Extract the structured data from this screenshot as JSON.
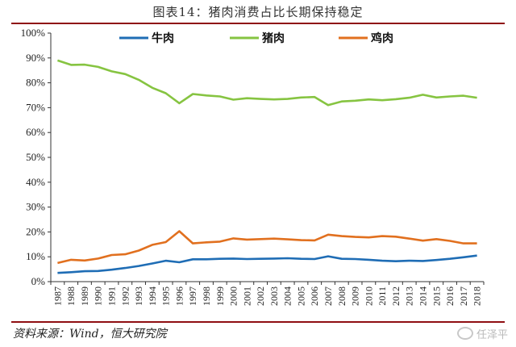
{
  "title": "图表14：猪肉消费占比长期保持稳定",
  "source": "资料来源：Wind，恒大研究院",
  "watermark": "任泽平",
  "chart_data": {
    "type": "line",
    "x": [
      1987,
      1988,
      1989,
      1990,
      1991,
      1992,
      1993,
      1994,
      1995,
      1996,
      1997,
      1998,
      1999,
      2000,
      2001,
      2002,
      2003,
      2004,
      2005,
      2006,
      2007,
      2008,
      2009,
      2010,
      2011,
      2012,
      2013,
      2014,
      2015,
      2016,
      2017,
      2018
    ],
    "ylim": [
      0,
      100
    ],
    "yticks": [
      "0%",
      "10%",
      "20%",
      "30%",
      "40%",
      "50%",
      "60%",
      "70%",
      "80%",
      "90%",
      "100%"
    ],
    "legend_position": "top-center",
    "series": [
      {
        "name": "牛肉",
        "color": "#1f6db5",
        "values": [
          3.5,
          3.8,
          4.2,
          4.3,
          4.8,
          5.5,
          6.3,
          7.3,
          8.4,
          7.8,
          9.0,
          9.0,
          9.2,
          9.3,
          9.1,
          9.2,
          9.3,
          9.4,
          9.2,
          9.1,
          10.2,
          9.2,
          9.1,
          8.8,
          8.4,
          8.2,
          8.4,
          8.3,
          8.7,
          9.2,
          9.8,
          10.5
        ]
      },
      {
        "name": "猪肉",
        "color": "#86c441",
        "values": [
          89.0,
          87.2,
          87.3,
          86.4,
          84.6,
          83.5,
          81.2,
          78.0,
          75.8,
          71.8,
          75.5,
          74.9,
          74.5,
          73.2,
          73.8,
          73.5,
          73.3,
          73.5,
          74.1,
          74.3,
          71.0,
          72.5,
          72.8,
          73.3,
          73.0,
          73.4,
          74.0,
          75.2,
          74.1,
          74.5,
          74.8,
          74.0
        ]
      },
      {
        "name": "鸡肉",
        "color": "#e1701f",
        "values": [
          7.5,
          8.8,
          8.5,
          9.3,
          10.7,
          11.0,
          12.5,
          14.8,
          15.9,
          20.3,
          15.4,
          15.8,
          16.1,
          17.4,
          16.9,
          17.1,
          17.3,
          17.0,
          16.7,
          16.6,
          18.9,
          18.3,
          18.0,
          17.8,
          18.3,
          18.1,
          17.3,
          16.5,
          17.1,
          16.4,
          15.4,
          15.4
        ]
      }
    ]
  }
}
